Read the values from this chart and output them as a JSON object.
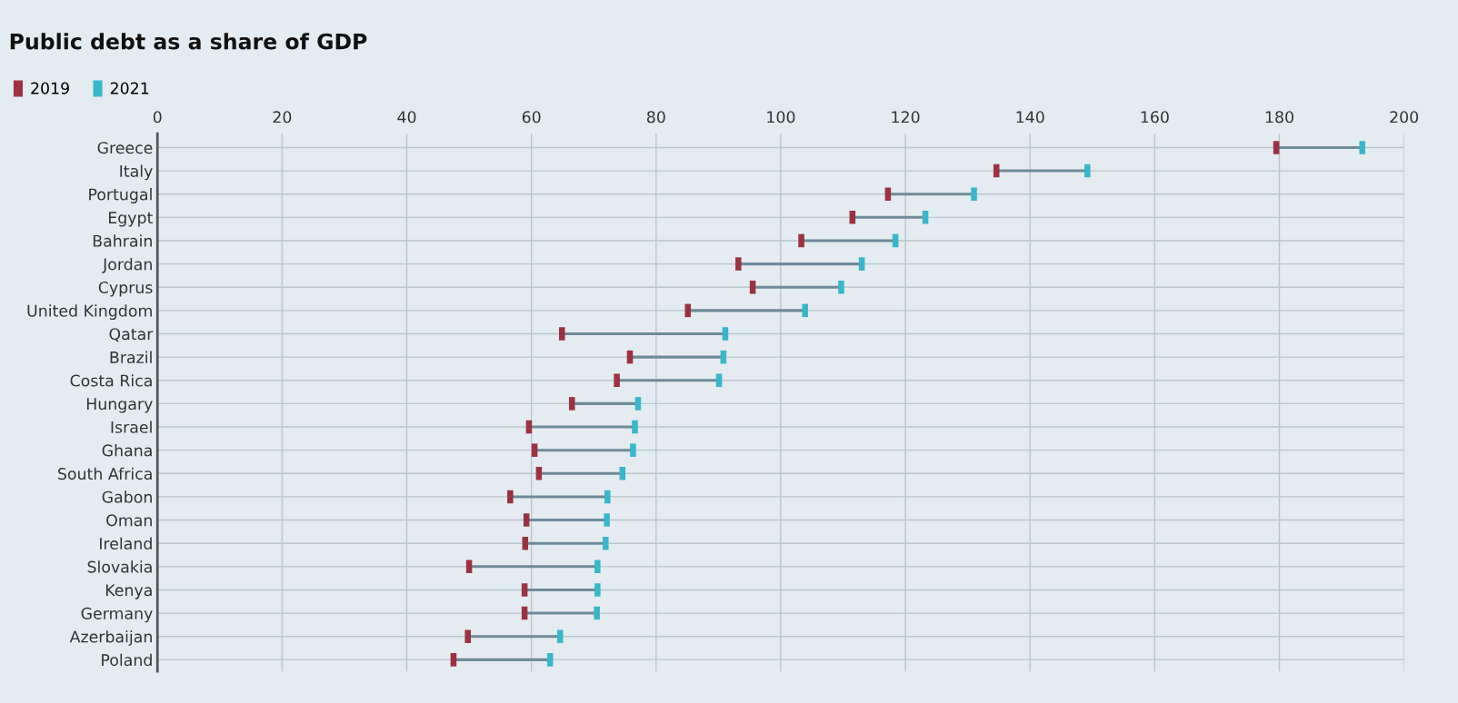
{
  "chart_data": {
    "type": "scatter",
    "title": "Public debt as a share of GDP",
    "orientation": "horizontal",
    "categories": [
      "Greece",
      "Italy",
      "Portugal",
      "Egypt",
      "Bahrain",
      "Jordan",
      "Cyprus",
      "United Kingdom",
      "Qatar",
      "Brazil",
      "Costa Rica",
      "Hungary",
      "Israel",
      "Ghana",
      "South Africa",
      "Gabon",
      "Oman",
      "Ireland",
      "Slovakia",
      "Kenya",
      "Germany",
      "Azerbaijan",
      "Poland"
    ],
    "series": [
      {
        "name": "2019",
        "color": "#9b3243",
        "values": [
          179.5,
          134.6,
          117.2,
          111.5,
          103.3,
          93.2,
          95.5,
          85.1,
          64.9,
          75.8,
          73.7,
          66.5,
          59.6,
          60.5,
          61.2,
          56.6,
          59.2,
          59.0,
          50.0,
          58.9,
          58.9,
          49.8,
          47.5
        ]
      },
      {
        "name": "2021",
        "color": "#3ab6c9",
        "values": [
          193.3,
          149.2,
          131.0,
          123.2,
          118.4,
          113.0,
          109.7,
          103.9,
          91.1,
          90.8,
          90.1,
          77.1,
          76.6,
          76.3,
          74.6,
          72.2,
          72.1,
          71.9,
          70.6,
          70.6,
          70.5,
          64.6,
          63.0
        ]
      }
    ],
    "xlim": [
      0,
      200
    ],
    "xticks": [
      0,
      20,
      40,
      60,
      80,
      100,
      120,
      140,
      160,
      180,
      200
    ],
    "grid": true,
    "legend": "top left"
  }
}
